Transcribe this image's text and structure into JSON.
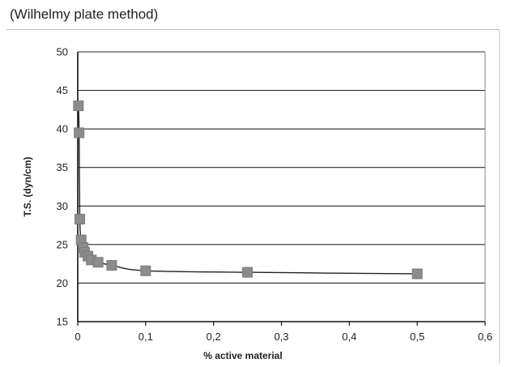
{
  "caption": "(Wilhelmy plate method)",
  "chart_data": {
    "type": "scatter",
    "xlabel": "% active material",
    "ylabel": "T.S. (dyn/cm)",
    "xlim": [
      0,
      0.6
    ],
    "ylim": [
      15,
      50
    ],
    "x_ticks": [
      "0",
      "0,1",
      "0,2",
      "0,3",
      "0,4",
      "0,5",
      "0,6"
    ],
    "y_ticks": [
      "15",
      "20",
      "25",
      "30",
      "35",
      "40",
      "45",
      "50"
    ],
    "grid": "horizontal",
    "series": [
      {
        "marker": "square",
        "line": "smooth",
        "color": "#8c8c8c",
        "x": [
          0.001,
          0.002,
          0.003,
          0.005,
          0.008,
          0.01,
          0.015,
          0.02,
          0.03,
          0.05,
          0.1,
          0.25,
          0.5
        ],
        "y": [
          43,
          39.5,
          28.3,
          25.6,
          24.6,
          24.0,
          23.5,
          23.0,
          22.7,
          22.3,
          21.6,
          21.4,
          21.2
        ]
      }
    ]
  }
}
